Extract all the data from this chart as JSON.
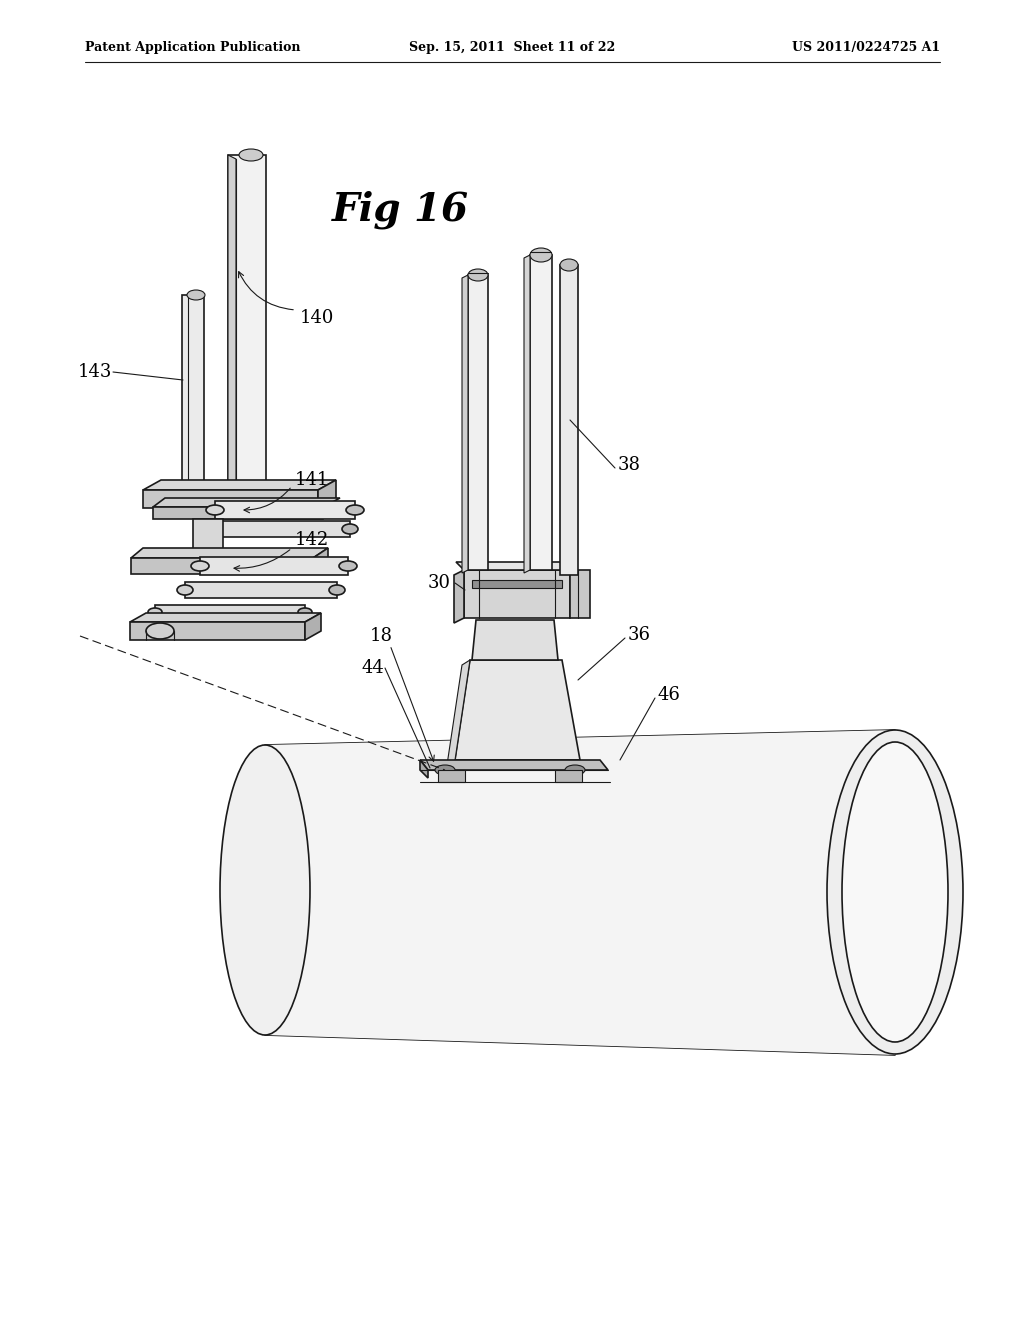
{
  "bg_color": "#ffffff",
  "header_left": "Patent Application Publication",
  "header_center": "Sep. 15, 2011  Sheet 11 of 22",
  "header_right": "US 2011/0224725 A1",
  "fig_title": "Fig 16",
  "line_color": "#1a1a1a",
  "fill_light": "#f0f0f0",
  "fill_mid": "#d8d8d8",
  "fill_dark": "#b8b8b8",
  "fill_white": "#ffffff"
}
